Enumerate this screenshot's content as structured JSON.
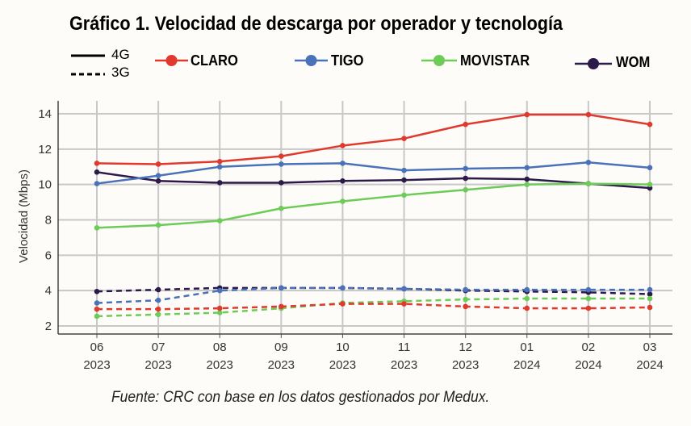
{
  "chart_data": {
    "type": "line",
    "title": "Gráfico 1. Velocidad de descarga por operador y tecnología",
    "ylabel": "Velocidad (Mbps)",
    "xlabel": "",
    "ylim": [
      2,
      14.6
    ],
    "yticks": [
      2,
      4,
      6,
      8,
      10,
      12,
      14
    ],
    "grid": true,
    "legend_position": "top",
    "categories": [
      {
        "month": "06",
        "year": "2023"
      },
      {
        "month": "07",
        "year": "2023"
      },
      {
        "month": "08",
        "year": "2023"
      },
      {
        "month": "09",
        "year": "2023"
      },
      {
        "month": "10",
        "year": "2023"
      },
      {
        "month": "11",
        "year": "2023"
      },
      {
        "month": "12",
        "year": "2023"
      },
      {
        "month": "01",
        "year": "2024"
      },
      {
        "month": "02",
        "year": "2024"
      },
      {
        "month": "03",
        "year": "2024"
      }
    ],
    "line_styles": [
      {
        "label": "4G",
        "dash": false
      },
      {
        "label": "3G",
        "dash": true
      }
    ],
    "operators": [
      {
        "name": "CLARO",
        "color": "#e03a2f"
      },
      {
        "name": "TIGO",
        "color": "#4a72b8"
      },
      {
        "name": "MOVISTAR",
        "color": "#6ccc57"
      },
      {
        "name": "WOM",
        "color": "#2b1a4a"
      }
    ],
    "series": [
      {
        "operator": "CLARO",
        "tech": "4G",
        "values": [
          11.2,
          11.15,
          11.3,
          11.6,
          12.2,
          12.6,
          13.4,
          13.95,
          13.95,
          13.4
        ]
      },
      {
        "operator": "TIGO",
        "tech": "4G",
        "values": [
          10.05,
          10.5,
          11.0,
          11.15,
          11.2,
          10.8,
          10.9,
          10.95,
          11.25,
          10.95
        ]
      },
      {
        "operator": "MOVISTAR",
        "tech": "4G",
        "values": [
          7.55,
          7.7,
          7.95,
          8.65,
          9.05,
          9.4,
          9.7,
          10.0,
          10.05,
          10.0
        ]
      },
      {
        "operator": "WOM",
        "tech": "4G",
        "values": [
          10.7,
          10.2,
          10.1,
          10.1,
          10.2,
          10.25,
          10.35,
          10.3,
          10.05,
          9.8
        ]
      },
      {
        "operator": "CLARO",
        "tech": "3G",
        "values": [
          2.95,
          2.95,
          3.0,
          3.1,
          3.25,
          3.25,
          3.1,
          3.0,
          3.0,
          3.05
        ]
      },
      {
        "operator": "TIGO",
        "tech": "3G",
        "values": [
          3.3,
          3.45,
          4.0,
          4.15,
          4.15,
          4.1,
          4.05,
          4.05,
          4.05,
          4.05
        ]
      },
      {
        "operator": "MOVISTAR",
        "tech": "3G",
        "values": [
          2.55,
          2.65,
          2.75,
          3.0,
          3.3,
          3.4,
          3.5,
          3.55,
          3.55,
          3.55
        ]
      },
      {
        "operator": "WOM",
        "tech": "3G",
        "values": [
          3.95,
          4.05,
          4.15,
          4.15,
          4.15,
          4.1,
          4.0,
          3.95,
          3.9,
          3.8
        ]
      }
    ]
  },
  "source": "Fuente: CRC con base en los datos gestionados por Medux."
}
